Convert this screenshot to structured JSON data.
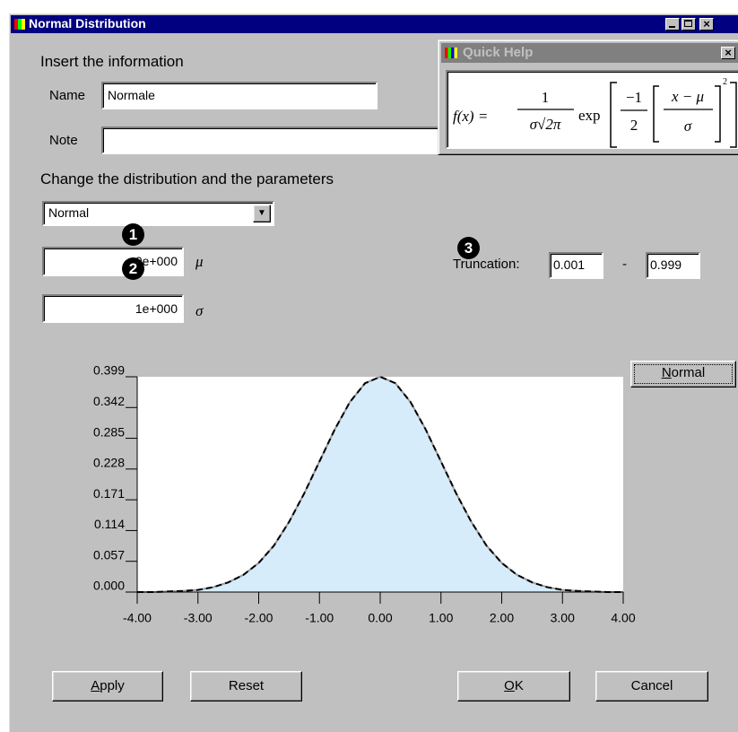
{
  "window": {
    "title": "Normal Distribution"
  },
  "form": {
    "heading": "Insert the information",
    "name_label": "Name",
    "name_value": "Normale",
    "note_label": "Note"
  },
  "quick_help": {
    "title": "Quick Help",
    "formula": {
      "lhs": "f(x) =",
      "num": "1",
      "den": "σ√2π",
      "fn": "exp",
      "inner_num": "−1",
      "inner_den": "2",
      "frac_num": "x − μ",
      "frac_den": "σ",
      "power": "2"
    }
  },
  "parameters": {
    "heading": "Change the distribution and the parameters",
    "distribution": "Normal",
    "mu_value": "0e+000",
    "mu_symbol": "μ",
    "sigma_value": "1e+000",
    "sigma_symbol": "σ",
    "truncation_label": "Truncation:",
    "trunc_low": "0.001",
    "trunc_sep": "-",
    "trunc_high": "0.999"
  },
  "callouts": [
    "1",
    "2",
    "3"
  ],
  "buttons": {
    "plot": "Normal",
    "apply": "Apply",
    "reset": "Reset",
    "ok": "OK",
    "cancel": "Cancel"
  },
  "chart_data": {
    "type": "area",
    "x": [
      -4,
      -3.75,
      -3.5,
      -3.25,
      -3,
      -2.75,
      -2.5,
      -2.25,
      -2,
      -1.75,
      -1.5,
      -1.25,
      -1,
      -0.75,
      -0.5,
      -0.25,
      0,
      0.25,
      0.5,
      0.75,
      1,
      1.25,
      1.5,
      1.75,
      2,
      2.25,
      2.5,
      2.75,
      3,
      3.25,
      3.5,
      3.75,
      4
    ],
    "values": [
      0,
      0,
      0.001,
      0.002,
      0.004,
      0.009,
      0.018,
      0.032,
      0.054,
      0.086,
      0.13,
      0.183,
      0.242,
      0.301,
      0.352,
      0.387,
      0.399,
      0.387,
      0.352,
      0.301,
      0.242,
      0.183,
      0.13,
      0.086,
      0.054,
      0.032,
      0.018,
      0.009,
      0.004,
      0.002,
      0.001,
      0,
      0
    ],
    "xlim": [
      -4,
      4
    ],
    "ylim": [
      0,
      0.399
    ],
    "xticks": [
      {
        "value": -4,
        "label": "-4.00"
      },
      {
        "value": -3,
        "label": "-3.00"
      },
      {
        "value": -2,
        "label": "-2.00"
      },
      {
        "value": -1,
        "label": "-1.00"
      },
      {
        "value": 0,
        "label": "0.00"
      },
      {
        "value": 1,
        "label": "1.00"
      },
      {
        "value": 2,
        "label": "2.00"
      },
      {
        "value": 3,
        "label": "3.00"
      },
      {
        "value": 4,
        "label": "4.00"
      }
    ],
    "yticks": [
      {
        "value": 0,
        "label": "0.000"
      },
      0.057,
      0.114,
      0.171,
      0.228,
      0.285,
      0.342,
      0.399
    ],
    "color": "#d6ecfa",
    "line_color": "#000000"
  }
}
